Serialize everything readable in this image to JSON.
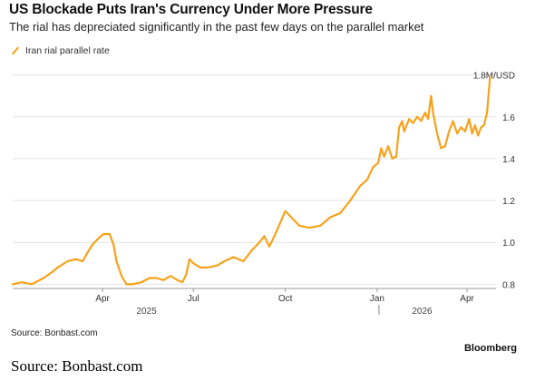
{
  "header": {
    "title": "US Blockade Puts Iran's Currency Under More Pressure",
    "subtitle": "The rial has depreciated significantly in the past few days on the parallel market"
  },
  "legend": {
    "label": "Iran rial parallel rate"
  },
  "footer": {
    "source": "Source: Bonbast.com",
    "brand": "Bloomberg",
    "caption": "Source: Bonbast.com"
  },
  "colors": {
    "series": "#f7a21b",
    "grid": "#e3e3e3",
    "axis": "#999999"
  },
  "chart_data": {
    "type": "line",
    "title": "US Blockade Puts Iran's Currency Under More Pressure",
    "subtitle": "The rial has depreciated significantly in the past few days on the parallel market",
    "xlabel": "",
    "ylabel": "",
    "ylim": [
      0.78,
      1.82
    ],
    "xlim": [
      "2025-01-01",
      "2026-04-30"
    ],
    "y_ticks": [
      {
        "value": 1.8,
        "label": "1.8M/USD"
      },
      {
        "value": 1.6,
        "label": "1.6"
      },
      {
        "value": 1.4,
        "label": "1.4"
      },
      {
        "value": 1.2,
        "label": "1.2"
      },
      {
        "value": 1.0,
        "label": "1.0"
      },
      {
        "value": 0.8,
        "label": "0.8"
      }
    ],
    "x_ticks": [
      {
        "date": "2025-04-01",
        "label": "Apr"
      },
      {
        "date": "2025-07-01",
        "label": "Jul"
      },
      {
        "date": "2025-10-01",
        "label": "Oct"
      },
      {
        "date": "2026-01-01",
        "label": "Jan"
      },
      {
        "date": "2026-04-01",
        "label": "Apr"
      }
    ],
    "year_labels": [
      {
        "date": "2025-05-15",
        "label": "2025"
      },
      {
        "date": "2026-02-15",
        "label": "2026"
      }
    ],
    "grid": true,
    "legend_position": "top-left",
    "series": [
      {
        "name": "Iran rial parallel rate",
        "color": "#f7a21b",
        "points": [
          [
            "2025-01-01",
            0.8
          ],
          [
            "2025-01-10",
            0.81
          ],
          [
            "2025-01-20",
            0.8
          ],
          [
            "2025-02-01",
            0.83
          ],
          [
            "2025-02-10",
            0.86
          ],
          [
            "2025-02-15",
            0.88
          ],
          [
            "2025-02-25",
            0.91
          ],
          [
            "2025-03-05",
            0.92
          ],
          [
            "2025-03-12",
            0.91
          ],
          [
            "2025-03-18",
            0.96
          ],
          [
            "2025-03-22",
            0.99
          ],
          [
            "2025-03-28",
            1.02
          ],
          [
            "2025-04-02",
            1.04
          ],
          [
            "2025-04-08",
            1.04
          ],
          [
            "2025-04-12",
            0.99
          ],
          [
            "2025-04-15",
            0.91
          ],
          [
            "2025-04-20",
            0.84
          ],
          [
            "2025-04-25",
            0.8
          ],
          [
            "2025-05-01",
            0.8
          ],
          [
            "2025-05-10",
            0.81
          ],
          [
            "2025-05-18",
            0.83
          ],
          [
            "2025-05-25",
            0.83
          ],
          [
            "2025-06-01",
            0.82
          ],
          [
            "2025-06-08",
            0.84
          ],
          [
            "2025-06-15",
            0.82
          ],
          [
            "2025-06-20",
            0.81
          ],
          [
            "2025-06-24",
            0.85
          ],
          [
            "2025-06-27",
            0.92
          ],
          [
            "2025-07-01",
            0.9
          ],
          [
            "2025-07-08",
            0.88
          ],
          [
            "2025-07-15",
            0.88
          ],
          [
            "2025-07-25",
            0.89
          ],
          [
            "2025-08-01",
            0.91
          ],
          [
            "2025-08-10",
            0.93
          ],
          [
            "2025-08-20",
            0.91
          ],
          [
            "2025-08-28",
            0.96
          ],
          [
            "2025-09-05",
            1.0
          ],
          [
            "2025-09-10",
            1.03
          ],
          [
            "2025-09-15",
            0.98
          ],
          [
            "2025-09-22",
            1.05
          ],
          [
            "2025-10-01",
            1.15
          ],
          [
            "2025-10-05",
            1.13
          ],
          [
            "2025-10-15",
            1.08
          ],
          [
            "2025-10-25",
            1.07
          ],
          [
            "2025-11-05",
            1.08
          ],
          [
            "2025-11-15",
            1.12
          ],
          [
            "2025-11-25",
            1.14
          ],
          [
            "2025-12-05",
            1.2
          ],
          [
            "2025-12-15",
            1.27
          ],
          [
            "2025-12-22",
            1.3
          ],
          [
            "2025-12-28",
            1.36
          ],
          [
            "2026-01-02",
            1.38
          ],
          [
            "2026-01-05",
            1.45
          ],
          [
            "2026-01-08",
            1.41
          ],
          [
            "2026-01-12",
            1.46
          ],
          [
            "2026-01-16",
            1.4
          ],
          [
            "2026-01-20",
            1.41
          ],
          [
            "2026-01-23",
            1.55
          ],
          [
            "2026-01-26",
            1.58
          ],
          [
            "2026-01-28",
            1.53
          ],
          [
            "2026-02-02",
            1.59
          ],
          [
            "2026-02-06",
            1.57
          ],
          [
            "2026-02-10",
            1.6
          ],
          [
            "2026-02-14",
            1.58
          ],
          [
            "2026-02-18",
            1.62
          ],
          [
            "2026-02-21",
            1.59
          ],
          [
            "2026-02-24",
            1.7
          ],
          [
            "2026-02-26",
            1.62
          ],
          [
            "2026-03-02",
            1.52
          ],
          [
            "2026-03-06",
            1.45
          ],
          [
            "2026-03-10",
            1.46
          ],
          [
            "2026-03-14",
            1.53
          ],
          [
            "2026-03-18",
            1.58
          ],
          [
            "2026-03-22",
            1.52
          ],
          [
            "2026-03-26",
            1.55
          ],
          [
            "2026-03-30",
            1.53
          ],
          [
            "2026-04-03",
            1.59
          ],
          [
            "2026-04-06",
            1.52
          ],
          [
            "2026-04-09",
            1.56
          ],
          [
            "2026-04-12",
            1.51
          ],
          [
            "2026-04-15",
            1.55
          ],
          [
            "2026-04-18",
            1.56
          ],
          [
            "2026-04-21",
            1.62
          ],
          [
            "2026-04-24",
            1.79
          ]
        ]
      }
    ]
  }
}
